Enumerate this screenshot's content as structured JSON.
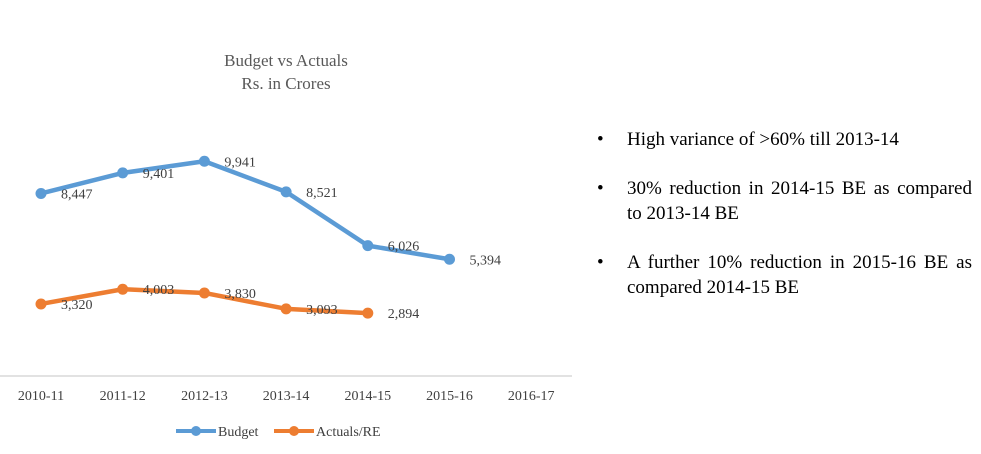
{
  "chart_data": {
    "type": "line",
    "title": "Budget vs Actuals",
    "subtitle": "Rs. in Crores",
    "xlabel": "",
    "ylabel": "",
    "categories": [
      "2010-11",
      "2011-12",
      "2012-13",
      "2013-14",
      "2014-15",
      "2015-16",
      "2016-17"
    ],
    "series": [
      {
        "name": "Budget",
        "color": "#5B9BD5",
        "values": [
          8447,
          9401,
          9941,
          8521,
          6026,
          5394,
          null
        ],
        "labels": [
          "8,447",
          "9,401",
          "9,941",
          "8,521",
          "6,026",
          "5,394",
          null
        ]
      },
      {
        "name": "Actuals/RE",
        "color": "#ED7D31",
        "values": [
          3320,
          4003,
          3830,
          3093,
          2894,
          null,
          null
        ],
        "labels": [
          "3,320",
          "4,003",
          "3,830",
          "3,093",
          "2,894",
          null,
          null
        ]
      }
    ],
    "ylim": [
      0,
      12000
    ],
    "grid": false,
    "y_axis_visible": false,
    "legend": "bottom"
  },
  "bullets": [
    "High variance of >60% till 2013-14",
    "30% reduction in 2014-15 BE as compared to 2013-14 BE",
    "A further 10% reduction in 2015-16 BE as compared 2014-15 BE"
  ]
}
